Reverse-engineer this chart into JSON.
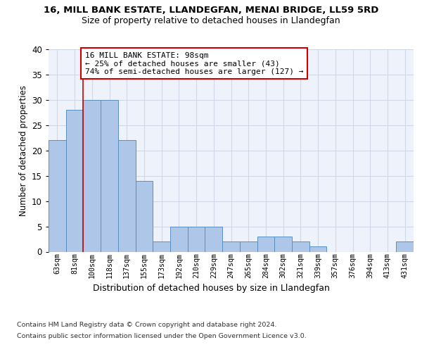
{
  "title": "16, MILL BANK ESTATE, LLANDEGFAN, MENAI BRIDGE, LL59 5RD",
  "subtitle": "Size of property relative to detached houses in Llandegfan",
  "xlabel": "Distribution of detached houses by size in Llandegfan",
  "ylabel": "Number of detached properties",
  "categories": [
    "63sqm",
    "81sqm",
    "100sqm",
    "118sqm",
    "137sqm",
    "155sqm",
    "173sqm",
    "192sqm",
    "210sqm",
    "229sqm",
    "247sqm",
    "265sqm",
    "284sqm",
    "302sqm",
    "321sqm",
    "339sqm",
    "357sqm",
    "376sqm",
    "394sqm",
    "413sqm",
    "431sqm"
  ],
  "values": [
    22,
    28,
    30,
    30,
    22,
    14,
    2,
    5,
    5,
    5,
    2,
    2,
    3,
    3,
    2,
    1,
    0,
    0,
    0,
    0,
    2
  ],
  "bar_color": "#aec6e8",
  "bar_edge_color": "#5a8fc0",
  "grid_color": "#d0d8e8",
  "background_color": "#eef2fa",
  "vline_x": 1.5,
  "vline_color": "#cc0000",
  "annotation_text": "16 MILL BANK ESTATE: 98sqm\n← 25% of detached houses are smaller (43)\n74% of semi-detached houses are larger (127) →",
  "annotation_box_color": "#ffffff",
  "annotation_box_edge_color": "#cc0000",
  "footer_line1": "Contains HM Land Registry data © Crown copyright and database right 2024.",
  "footer_line2": "Contains public sector information licensed under the Open Government Licence v3.0.",
  "ylim": [
    0,
    40
  ],
  "yticks": [
    0,
    5,
    10,
    15,
    20,
    25,
    30,
    35,
    40
  ]
}
